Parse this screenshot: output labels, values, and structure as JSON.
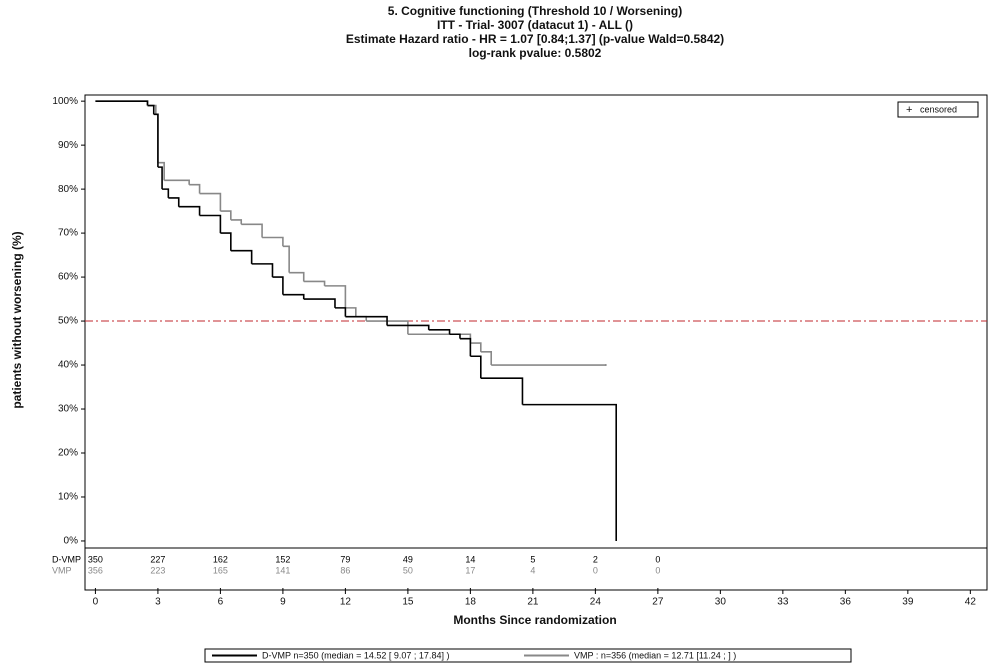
{
  "chart_data": {
    "type": "step",
    "title_lines": [
      "5. Cognitive functioning (Threshold 10 / Worsening)",
      "ITT -  Trial- 3007 (datacut 1) - ALL ()",
      "Estimate Hazard ratio -  HR = 1.07 [0.84;1.37] (p-value Wald=0.5842)",
      "log-rank pvalue: 0.5802"
    ],
    "x_label": "Months Since randomization",
    "y_label": "patients without worsening (%)",
    "xlim": [
      -0.5,
      42.8
    ],
    "xticks": [
      0,
      3,
      6,
      9,
      12,
      15,
      18,
      21,
      24,
      27,
      30,
      33,
      36,
      39,
      42
    ],
    "ylim": [
      -1.6,
      101.4
    ],
    "yticks": [
      {
        "value": 0,
        "label": "0%"
      },
      {
        "value": 10,
        "label": "10%"
      },
      {
        "value": 20,
        "label": "20%"
      },
      {
        "value": 30,
        "label": "30%"
      },
      {
        "value": 40,
        "label": "40%"
      },
      {
        "value": 50,
        "label": "50%"
      },
      {
        "value": 60,
        "label": "60%"
      },
      {
        "value": 70,
        "label": "70%"
      },
      {
        "value": 80,
        "label": "80%"
      },
      {
        "value": 90,
        "label": "90%"
      },
      {
        "value": 100,
        "label": "100%"
      }
    ],
    "reference_line": {
      "value": 50,
      "color": "#c0272d"
    },
    "censor_legend": "censored",
    "series": [
      {
        "name": "D-VMP",
        "color": "#000000",
        "legend_text": "D-VMP  n=350 (median = 14.52 [ 9.07 ; 17.84] )",
        "x": [
          0,
          2.5,
          2.8,
          3,
          3.2,
          3.5,
          4,
          5,
          6,
          6.5,
          7.5,
          8.5,
          9,
          10,
          11.5,
          12,
          14,
          16,
          17,
          17.5,
          18,
          18.5,
          20.5,
          25
        ],
        "values": [
          100,
          99,
          97,
          85,
          80,
          78,
          76,
          74,
          70,
          66,
          63,
          60,
          56,
          55,
          53,
          51,
          49,
          48,
          47,
          46,
          42,
          37,
          31,
          0
        ]
      },
      {
        "name": "VMP",
        "color": "#888888",
        "legend_text": "VMP : n=356 (median = 12.71 [11.24 ;  ] )",
        "x": [
          0,
          2.5,
          2.9,
          3,
          3.3,
          4.5,
          5,
          6,
          6.5,
          7,
          8,
          9,
          9.3,
          10,
          11,
          12,
          12.5,
          13,
          15,
          18,
          18.5,
          19,
          24.5
        ],
        "values": [
          100,
          99,
          97,
          86,
          82,
          81,
          79,
          75,
          73,
          72,
          69,
          67,
          61,
          59,
          58,
          53,
          51,
          50,
          47,
          45,
          43,
          40,
          40
        ]
      }
    ],
    "risk_table": {
      "times": [
        0,
        3,
        6,
        9,
        12,
        15,
        18,
        21,
        24,
        27
      ],
      "rows": [
        {
          "name": "D-VMP",
          "values": [
            350,
            227,
            162,
            152,
            79,
            49,
            14,
            5,
            2,
            0
          ]
        },
        {
          "name": "VMP",
          "values": [
            356,
            223,
            165,
            141,
            86,
            50,
            17,
            4,
            0,
            0
          ]
        }
      ]
    }
  }
}
